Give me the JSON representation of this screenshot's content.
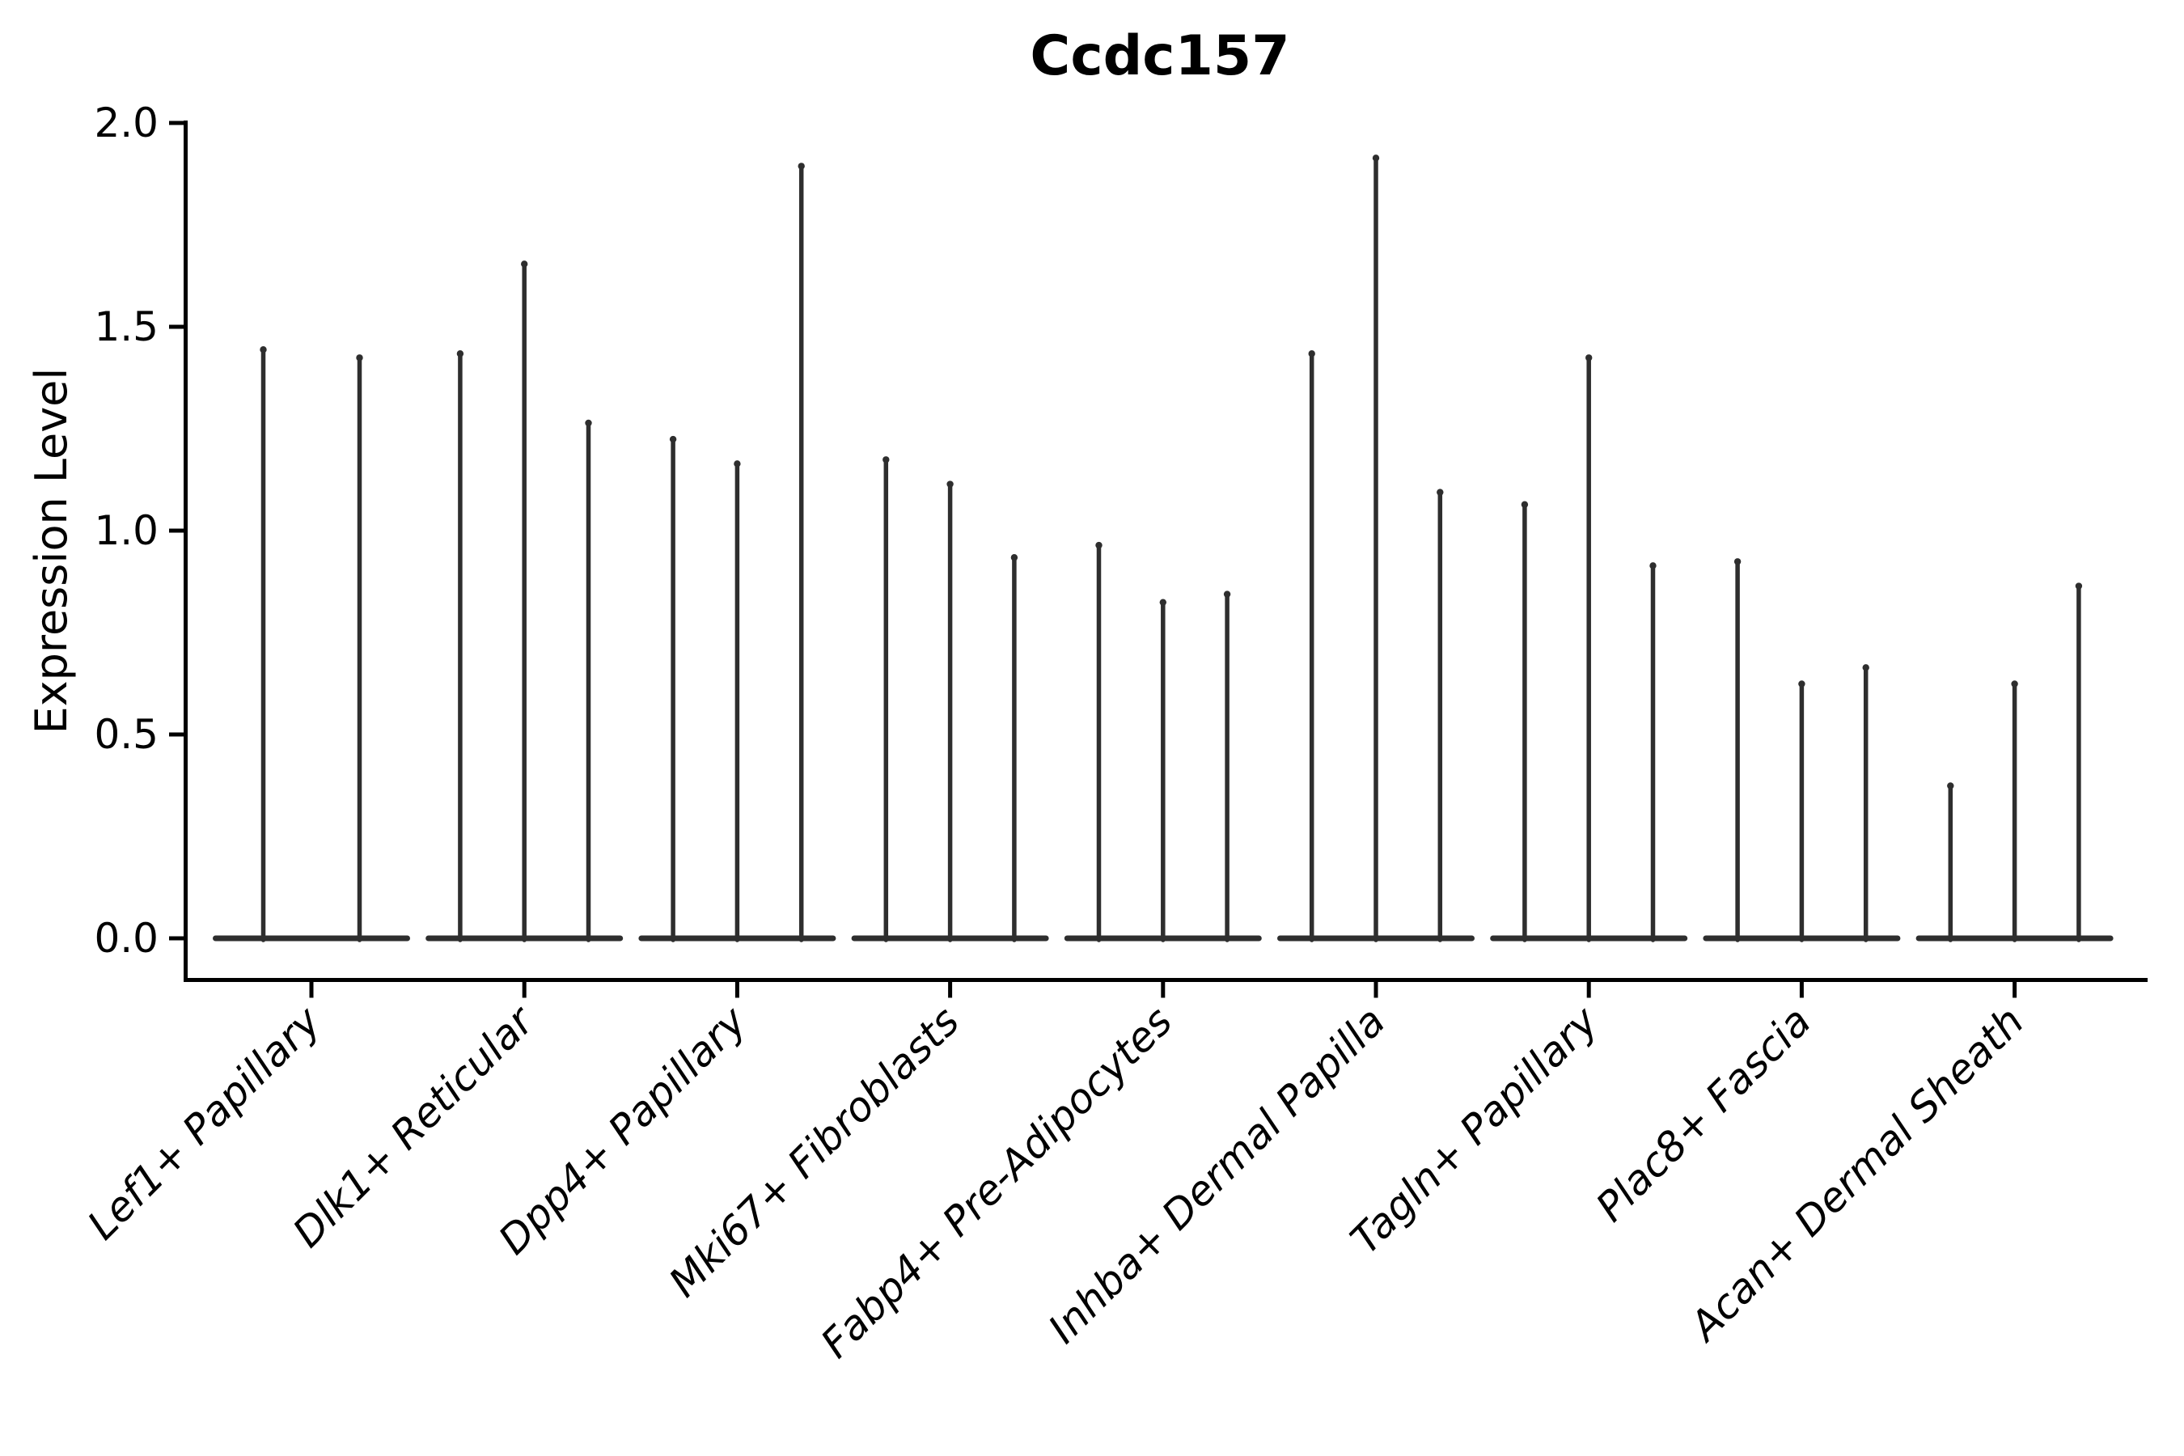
{
  "chart_data": {
    "type": "violin",
    "title": "Ccdc157",
    "ylabel": "Expression Level",
    "xlabel": "",
    "ylim": [
      -0.1,
      2.0
    ],
    "yticks": [
      0.0,
      0.5,
      1.0,
      1.5,
      2.0
    ],
    "ytick_labels": [
      "0.0",
      "0.5",
      "1.0",
      "1.5",
      "2.0"
    ],
    "grid": false,
    "legend_position": "none",
    "categories": [
      "Lef1+ Papillary",
      "Dlk1+ Reticular",
      "Dpp4+ Papillary",
      "Mki67+ Fibroblasts",
      "Fabp4+ Pre-Adipocytes",
      "Inhba+ Dermal Papilla",
      "Tagln+ Papillary",
      "Plac8+ Fascia",
      "Acan+ Dermal Sheath"
    ],
    "series": [
      {
        "name": "Lef1+ Papillary",
        "violin_peak_values": [
          1.45,
          1.43
        ]
      },
      {
        "name": "Dlk1+ Reticular",
        "violin_peak_values": [
          1.44,
          1.66,
          1.27
        ]
      },
      {
        "name": "Dpp4+ Papillary",
        "violin_peak_values": [
          1.23,
          1.17,
          1.9
        ]
      },
      {
        "name": "Mki67+ Fibroblasts",
        "violin_peak_values": [
          1.18,
          1.12,
          0.94
        ]
      },
      {
        "name": "Fabp4+ Pre-Adipocytes",
        "violin_peak_values": [
          0.97,
          0.83,
          0.85
        ]
      },
      {
        "name": "Inhba+ Dermal Papilla",
        "violin_peak_values": [
          1.44,
          1.92,
          1.1
        ]
      },
      {
        "name": "Tagln+ Papillary",
        "violin_peak_values": [
          1.07,
          1.43,
          0.92
        ]
      },
      {
        "name": "Plac8+ Fascia",
        "violin_peak_values": [
          0.93,
          0.63,
          0.67
        ]
      },
      {
        "name": "Acan+ Dermal Sheath",
        "violin_peak_values": [
          0.38,
          0.63,
          0.87
        ]
      }
    ],
    "violin_baseline_value": 0.0
  },
  "colors": {
    "violin": "#2e2e2e",
    "axis": "#000000",
    "text": "#000000",
    "background": "#ffffff"
  }
}
